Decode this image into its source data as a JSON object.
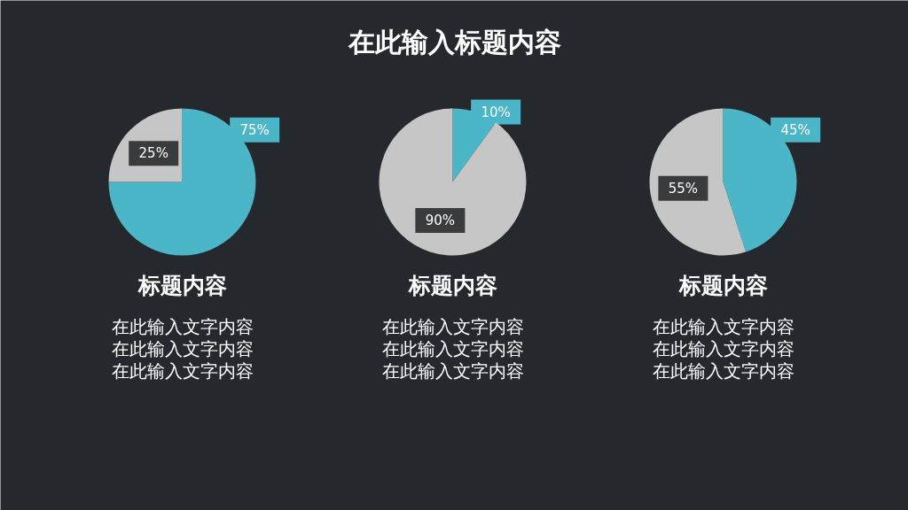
{
  "chart_data": [
    {
      "type": "other",
      "title": "在此输入标题内容"
    },
    {
      "type": "pie",
      "title": "标题内容",
      "categories": [
        null,
        null
      ],
      "values": [
        75,
        25
      ],
      "colors": [
        "#4bb6c8",
        "#c6c6c6"
      ],
      "value_labels": [
        "75%",
        "25%"
      ],
      "annotations": [
        "在此输入文字内容",
        "在此输入文字内容",
        "在此输入文字内容"
      ]
    },
    {
      "type": "pie",
      "title": "标题内容",
      "categories": [
        null,
        null
      ],
      "values": [
        10,
        90
      ],
      "colors": [
        "#4bb6c8",
        "#c6c6c6"
      ],
      "value_labels": [
        "10%",
        "90%"
      ],
      "annotations": [
        "在此输入文字内容",
        "在此输入文字内容",
        "在此输入文字内容"
      ]
    },
    {
      "type": "pie",
      "title": "标题内容",
      "categories": [
        null,
        null
      ],
      "values": [
        45,
        55
      ],
      "colors": [
        "#4bb6c8",
        "#c6c6c6"
      ],
      "value_labels": [
        "45%",
        "55%"
      ],
      "annotations": [
        "在此输入文字内容",
        "在此输入文字内容",
        "在此输入文字内容"
      ]
    }
  ]
}
